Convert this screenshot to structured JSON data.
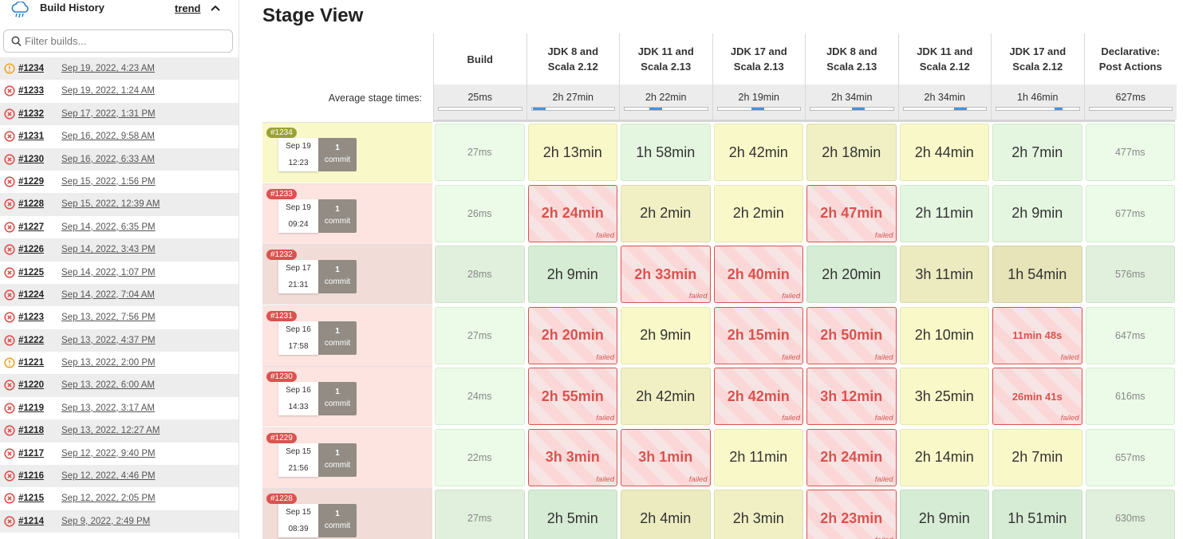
{
  "sidebar": {
    "title": "Build History",
    "trend_label": "trend",
    "filter_placeholder": "Filter builds...",
    "builds": [
      {
        "number": "#1234",
        "date": "Sep 19, 2022, 4:23 AM",
        "status": "unstable"
      },
      {
        "number": "#1233",
        "date": "Sep 19, 2022, 1:24 AM",
        "status": "failed"
      },
      {
        "number": "#1232",
        "date": "Sep 17, 2022, 1:31 PM",
        "status": "failed"
      },
      {
        "number": "#1231",
        "date": "Sep 16, 2022, 9:58 AM",
        "status": "failed"
      },
      {
        "number": "#1230",
        "date": "Sep 16, 2022, 6:33 AM",
        "status": "failed"
      },
      {
        "number": "#1229",
        "date": "Sep 15, 2022, 1:56 PM",
        "status": "failed"
      },
      {
        "number": "#1228",
        "date": "Sep 15, 2022, 12:39 AM",
        "status": "failed"
      },
      {
        "number": "#1227",
        "date": "Sep 14, 2022, 6:35 PM",
        "status": "failed"
      },
      {
        "number": "#1226",
        "date": "Sep 14, 2022, 3:43 PM",
        "status": "failed"
      },
      {
        "number": "#1225",
        "date": "Sep 14, 2022, 1:07 PM",
        "status": "failed"
      },
      {
        "number": "#1224",
        "date": "Sep 14, 2022, 7:04 AM",
        "status": "failed"
      },
      {
        "number": "#1223",
        "date": "Sep 13, 2022, 7:56 PM",
        "status": "failed"
      },
      {
        "number": "#1222",
        "date": "Sep 13, 2022, 4:37 PM",
        "status": "failed"
      },
      {
        "number": "#1221",
        "date": "Sep 13, 2022, 2:00 PM",
        "status": "unstable"
      },
      {
        "number": "#1220",
        "date": "Sep 13, 2022, 6:00 AM",
        "status": "failed"
      },
      {
        "number": "#1219",
        "date": "Sep 13, 2022, 3:17 AM",
        "status": "failed"
      },
      {
        "number": "#1218",
        "date": "Sep 13, 2022, 12:27 AM",
        "status": "failed"
      },
      {
        "number": "#1217",
        "date": "Sep 12, 2022, 9:40 PM",
        "status": "failed"
      },
      {
        "number": "#1216",
        "date": "Sep 12, 2022, 4:46 PM",
        "status": "failed"
      },
      {
        "number": "#1215",
        "date": "Sep 12, 2022, 2:05 PM",
        "status": "failed"
      },
      {
        "number": "#1214",
        "date": "Sep 9, 2022, 2:49 PM",
        "status": "failed"
      }
    ]
  },
  "stage_view": {
    "title": "Stage View",
    "avg_label": "Average stage times:",
    "failed_label": "failed",
    "stages": [
      {
        "line1": "",
        "line2": "Build",
        "avg": "25ms",
        "avg_fraction": 0
      },
      {
        "line1": "JDK 8 and",
        "line2": "Scala 2.12",
        "avg": "2h 27min",
        "avg_fraction": 0.15
      },
      {
        "line1": "JDK 11 and",
        "line2": "Scala 2.13",
        "avg": "2h 22min",
        "avg_fraction": 0.15
      },
      {
        "line1": "JDK 17 and",
        "line2": "Scala 2.13",
        "avg": "2h 19min",
        "avg_fraction": 0.15
      },
      {
        "line1": "JDK 8 and",
        "line2": "Scala 2.13",
        "avg": "2h 34min",
        "avg_fraction": 0.15
      },
      {
        "line1": "JDK 11 and",
        "line2": "Scala 2.12",
        "avg": "2h 34min",
        "avg_fraction": 0.15
      },
      {
        "line1": "JDK 17 and",
        "line2": "Scala 2.12",
        "avg": "1h 46min",
        "avg_fraction": 0.1
      },
      {
        "line1": "Declarative:",
        "line2": "Post Actions",
        "avg": "627ms",
        "avg_fraction": 0
      }
    ],
    "rows": [
      {
        "badge": "#1234",
        "state": "unstable",
        "date": "Sep 19",
        "time": "12:23",
        "commits": "1",
        "commit_label": "commit",
        "cells": [
          {
            "t": "27ms",
            "s": "lg"
          },
          {
            "t": "2h 13min",
            "s": "y1"
          },
          {
            "t": "1h 58min",
            "s": "g1"
          },
          {
            "t": "2h 42min",
            "s": "y1"
          },
          {
            "t": "2h 18min",
            "s": "y2"
          },
          {
            "t": "2h 44min",
            "s": "y1"
          },
          {
            "t": "2h 7min",
            "s": "g1"
          },
          {
            "t": "477ms",
            "s": "lg"
          }
        ]
      },
      {
        "badge": "#1233",
        "state": "failed",
        "date": "Sep 19",
        "time": "09:24",
        "commits": "1",
        "commit_label": "commit",
        "cells": [
          {
            "t": "26ms",
            "s": "lg"
          },
          {
            "t": "2h 24min",
            "s": "fail"
          },
          {
            "t": "2h 2min",
            "s": "y2"
          },
          {
            "t": "2h 2min",
            "s": "y1"
          },
          {
            "t": "2h 47min",
            "s": "fail"
          },
          {
            "t": "2h 11min",
            "s": "g1"
          },
          {
            "t": "2h 9min",
            "s": "g1"
          },
          {
            "t": "677ms",
            "s": "lg"
          }
        ]
      },
      {
        "badge": "#1232",
        "state": "failed",
        "date": "Sep 17",
        "time": "21:31",
        "commits": "1",
        "commit_label": "commit",
        "cells": [
          {
            "t": "28ms",
            "s": "lg2"
          },
          {
            "t": "2h 9min",
            "s": "g2"
          },
          {
            "t": "2h 33min",
            "s": "fail"
          },
          {
            "t": "2h 40min",
            "s": "fail"
          },
          {
            "t": "2h 20min",
            "s": "g2"
          },
          {
            "t": "3h 11min",
            "s": "y3"
          },
          {
            "t": "1h 54min",
            "s": "y4"
          },
          {
            "t": "576ms",
            "s": "lg2"
          }
        ]
      },
      {
        "badge": "#1231",
        "state": "failed",
        "date": "Sep 16",
        "time": "17:58",
        "commits": "1",
        "commit_label": "commit",
        "cells": [
          {
            "t": "27ms",
            "s": "lg"
          },
          {
            "t": "2h 20min",
            "s": "fail"
          },
          {
            "t": "2h 9min",
            "s": "y1"
          },
          {
            "t": "2h 15min",
            "s": "fail"
          },
          {
            "t": "2h 50min",
            "s": "fail"
          },
          {
            "t": "2h 10min",
            "s": "y1"
          },
          {
            "t": "11min 48s",
            "s": "fail"
          },
          {
            "t": "647ms",
            "s": "lg"
          }
        ]
      },
      {
        "badge": "#1230",
        "state": "failed",
        "date": "Sep 16",
        "time": "14:33",
        "commits": "1",
        "commit_label": "commit",
        "cells": [
          {
            "t": "24ms",
            "s": "lg"
          },
          {
            "t": "2h 55min",
            "s": "fail"
          },
          {
            "t": "2h 42min",
            "s": "y2"
          },
          {
            "t": "2h 42min",
            "s": "fail"
          },
          {
            "t": "3h 12min",
            "s": "fail"
          },
          {
            "t": "3h 25min",
            "s": "y1"
          },
          {
            "t": "26min 41s",
            "s": "fail"
          },
          {
            "t": "616ms",
            "s": "lg"
          }
        ]
      },
      {
        "badge": "#1229",
        "state": "failed",
        "date": "Sep 15",
        "time": "21:56",
        "commits": "1",
        "commit_label": "commit",
        "cells": [
          {
            "t": "22ms",
            "s": "lg"
          },
          {
            "t": "3h 3min",
            "s": "fail"
          },
          {
            "t": "3h 1min",
            "s": "fail"
          },
          {
            "t": "2h 11min",
            "s": "y1"
          },
          {
            "t": "2h 24min",
            "s": "fail"
          },
          {
            "t": "2h 14min",
            "s": "y1"
          },
          {
            "t": "2h 7min",
            "s": "y1"
          },
          {
            "t": "657ms",
            "s": "lg"
          }
        ]
      },
      {
        "badge": "#1228",
        "state": "failed",
        "date": "Sep 15",
        "time": "08:39",
        "commits": "1",
        "commit_label": "commit",
        "cells": [
          {
            "t": "27ms",
            "s": "lg2"
          },
          {
            "t": "2h 5min",
            "s": "g2"
          },
          {
            "t": "2h 4min",
            "s": "y3"
          },
          {
            "t": "2h 3min",
            "s": "y2"
          },
          {
            "t": "2h 23min",
            "s": "fail"
          },
          {
            "t": "2h 9min",
            "s": "g2"
          },
          {
            "t": "1h 51min",
            "s": "g2"
          },
          {
            "t": "630ms",
            "s": "lg2"
          }
        ]
      }
    ]
  },
  "colors": {
    "failed": "#d9534f",
    "unstable_badge": "#9aa234",
    "progress": "#4a90d9",
    "unstable_icon": "#f0a020"
  }
}
